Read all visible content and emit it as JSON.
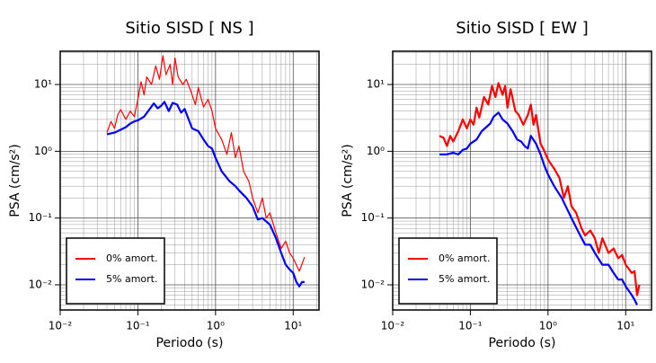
{
  "chart_data": [
    {
      "type": "line",
      "title": "Sitio SISD [ NS ]",
      "xlabel": "Periodo (s)",
      "ylabel": "PSA (cm/s²)",
      "xscale": "log",
      "yscale": "log",
      "grid": true,
      "legend": "lower left",
      "xlim": [
        0.01,
        21.5
      ],
      "ylim": [
        0.0042,
        31.5
      ],
      "xticks": [
        {
          "value": 0.01,
          "label": "10⁻²"
        },
        {
          "value": 0.1,
          "label": "10⁻¹"
        },
        {
          "value": 1,
          "label": "10⁰"
        },
        {
          "value": 10,
          "label": "10¹"
        }
      ],
      "yticks": [
        {
          "value": 0.01,
          "label": "10⁻²"
        },
        {
          "value": 0.1,
          "label": "10⁻¹"
        },
        {
          "value": 1,
          "label": "10⁰"
        },
        {
          "value": 10,
          "label": "10¹"
        }
      ],
      "series": [
        {
          "name": "0% amort.",
          "color": "#ff0000",
          "width": 1.2,
          "x": [
            0.04,
            0.045,
            0.05,
            0.055,
            0.06,
            0.07,
            0.08,
            0.09,
            0.1,
            0.11,
            0.12,
            0.13,
            0.15,
            0.17,
            0.19,
            0.21,
            0.23,
            0.26,
            0.28,
            0.3,
            0.33,
            0.38,
            0.42,
            0.48,
            0.55,
            0.6,
            0.7,
            0.8,
            0.9,
            1.0,
            1.2,
            1.4,
            1.6,
            1.8,
            2.0,
            2.3,
            2.7,
            3.0,
            3.5,
            4.0,
            4.5,
            5,
            6,
            7,
            8,
            9,
            10,
            12,
            14
          ],
          "values": [
            1.9,
            2.8,
            2.2,
            3.5,
            4.2,
            3.0,
            4.0,
            3.3,
            6,
            11,
            7,
            13,
            10,
            19,
            12,
            27,
            14,
            20,
            10,
            25,
            13,
            10,
            12,
            8,
            5,
            9,
            4.6,
            6,
            4,
            2.2,
            1.5,
            0.9,
            1.9,
            0.8,
            1.2,
            0.5,
            0.35,
            0.2,
            0.12,
            0.2,
            0.1,
            0.12,
            0.06,
            0.035,
            0.045,
            0.03,
            0.025,
            0.016,
            0.026
          ]
        },
        {
          "name": "5% amort.",
          "color": "#0000ff",
          "width": 2.2,
          "x": [
            0.04,
            0.05,
            0.06,
            0.07,
            0.08,
            0.09,
            0.1,
            0.12,
            0.14,
            0.16,
            0.18,
            0.2,
            0.22,
            0.25,
            0.28,
            0.32,
            0.36,
            0.4,
            0.45,
            0.5,
            0.6,
            0.7,
            0.8,
            0.9,
            1.0,
            1.2,
            1.5,
            1.8,
            2.0,
            2.5,
            3.0,
            3.5,
            4.0,
            5,
            6,
            7,
            8,
            9,
            10,
            11,
            12,
            13,
            14
          ],
          "values": [
            1.8,
            1.9,
            2.1,
            2.3,
            2.6,
            2.8,
            2.9,
            3.3,
            4.2,
            5.2,
            4.4,
            4.8,
            5.5,
            4.0,
            5.3,
            5.0,
            3.8,
            4.3,
            3.0,
            2.2,
            2.0,
            1.5,
            1.2,
            1.1,
            0.8,
            0.5,
            0.36,
            0.3,
            0.26,
            0.2,
            0.15,
            0.095,
            0.1,
            0.08,
            0.05,
            0.03,
            0.02,
            0.017,
            0.015,
            0.011,
            0.0095,
            0.011,
            0.011
          ]
        }
      ]
    },
    {
      "type": "line",
      "title": "Sitio SISD [ EW ]",
      "xlabel": "Periodo (s)",
      "ylabel": "PSA (cm/s²)",
      "xscale": "log",
      "yscale": "log",
      "grid": true,
      "legend": "lower left",
      "xlim": [
        0.01,
        21.5
      ],
      "ylim": [
        0.0042,
        31.5
      ],
      "xticks": [
        {
          "value": 0.01,
          "label": "10⁻²"
        },
        {
          "value": 0.1,
          "label": "10⁻¹"
        },
        {
          "value": 1,
          "label": "10⁰"
        },
        {
          "value": 10,
          "label": "10¹"
        }
      ],
      "yticks": [
        {
          "value": 0.01,
          "label": "10⁻²"
        },
        {
          "value": 0.1,
          "label": "10⁻¹"
        },
        {
          "value": 1,
          "label": "10⁰"
        },
        {
          "value": 10,
          "label": "10¹"
        }
      ],
      "series": [
        {
          "name": "0% amort.",
          "color": "#ff0000",
          "width": 2.2,
          "x": [
            0.04,
            0.045,
            0.05,
            0.055,
            0.06,
            0.07,
            0.08,
            0.09,
            0.1,
            0.11,
            0.12,
            0.13,
            0.15,
            0.17,
            0.19,
            0.21,
            0.23,
            0.26,
            0.28,
            0.3,
            0.33,
            0.38,
            0.42,
            0.48,
            0.55,
            0.6,
            0.65,
            0.7,
            0.8,
            0.9,
            1.0,
            1.2,
            1.4,
            1.6,
            1.8,
            2.0,
            2.3,
            2.7,
            3.0,
            3.5,
            4.0,
            4.5,
            5,
            6,
            7,
            8,
            9,
            10,
            12,
            13,
            14,
            15
          ],
          "values": [
            1.7,
            1.6,
            1.2,
            1.7,
            1.4,
            2.0,
            3.0,
            2.2,
            3.0,
            2.5,
            4.5,
            3.2,
            6.5,
            5,
            9.5,
            6.5,
            10.5,
            7,
            9.5,
            4.5,
            8.5,
            4,
            3.5,
            2.5,
            3.5,
            5,
            2.5,
            3.5,
            1.3,
            1.0,
            0.75,
            0.55,
            0.4,
            0.2,
            0.3,
            0.15,
            0.12,
            0.07,
            0.055,
            0.065,
            0.05,
            0.03,
            0.05,
            0.03,
            0.035,
            0.025,
            0.028,
            0.02,
            0.015,
            0.016,
            0.007,
            0.01
          ]
        },
        {
          "name": "5% amort.",
          "color": "#0000ff",
          "width": 2.2,
          "x": [
            0.04,
            0.05,
            0.06,
            0.07,
            0.08,
            0.09,
            0.1,
            0.12,
            0.14,
            0.16,
            0.18,
            0.2,
            0.23,
            0.26,
            0.3,
            0.35,
            0.4,
            0.45,
            0.5,
            0.55,
            0.6,
            0.7,
            0.8,
            0.9,
            1.0,
            1.2,
            1.5,
            2.0,
            2.5,
            3.0,
            3.5,
            4,
            5,
            6,
            7,
            8,
            9,
            10,
            12,
            13,
            14
          ],
          "values": [
            0.9,
            0.9,
            0.95,
            0.9,
            1.05,
            1.1,
            1.3,
            1.5,
            2.0,
            2.3,
            2.6,
            3.3,
            3.8,
            3.0,
            2.6,
            2.0,
            1.5,
            1.4,
            1.2,
            1.1,
            1.7,
            1.3,
            0.9,
            0.6,
            0.45,
            0.3,
            0.2,
            0.1,
            0.06,
            0.04,
            0.04,
            0.03,
            0.02,
            0.02,
            0.015,
            0.012,
            0.012,
            0.0095,
            0.007,
            0.006,
            0.005
          ]
        }
      ]
    }
  ]
}
